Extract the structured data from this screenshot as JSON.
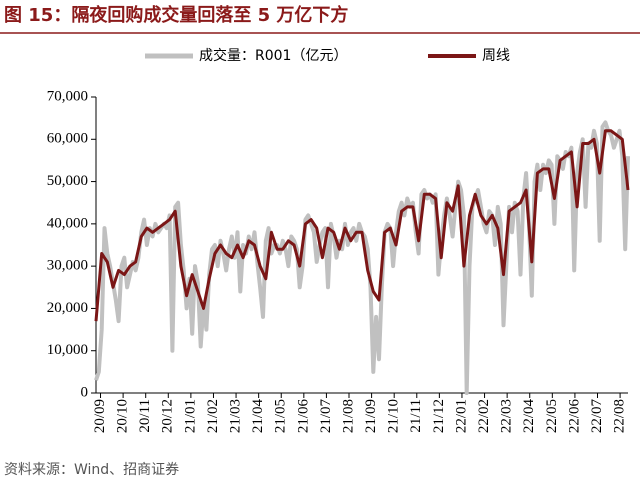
{
  "chart_data": {
    "type": "line",
    "title": "图 15：隔夜回购成交量回落至 5 万亿下方",
    "source": "资料来源：Wind、招商证券",
    "xlim": [
      -0.2,
      23.35
    ],
    "xticks": [
      {
        "value": 0,
        "label": "20/09"
      },
      {
        "value": 1,
        "label": "20/10"
      },
      {
        "value": 2,
        "label": "20/11"
      },
      {
        "value": 3,
        "label": "20/12"
      },
      {
        "value": 4,
        "label": "21/01"
      },
      {
        "value": 5,
        "label": "21/02"
      },
      {
        "value": 6,
        "label": "21/03"
      },
      {
        "value": 7,
        "label": "21/04"
      },
      {
        "value": 8,
        "label": "21/05"
      },
      {
        "value": 9,
        "label": "21/06"
      },
      {
        "value": 10,
        "label": "21/07"
      },
      {
        "value": 11,
        "label": "21/08"
      },
      {
        "value": 12,
        "label": "21/09"
      },
      {
        "value": 13,
        "label": "21/10"
      },
      {
        "value": 14,
        "label": "21/11"
      },
      {
        "value": 15,
        "label": "21/12"
      },
      {
        "value": 16,
        "label": "22/01"
      },
      {
        "value": 17,
        "label": "22/02"
      },
      {
        "value": 18,
        "label": "22/03"
      },
      {
        "value": 19,
        "label": "22/04"
      },
      {
        "value": 20,
        "label": "22/05"
      },
      {
        "value": 21,
        "label": "22/06"
      },
      {
        "value": 22,
        "label": "22/07"
      },
      {
        "value": 23,
        "label": "22/08"
      }
    ],
    "ylim": [
      0,
      70000
    ],
    "yticks": [
      0,
      {
        "value": 10000,
        "label": "10,000"
      },
      {
        "value": 20000,
        "label": "20,000"
      },
      {
        "value": 30000,
        "label": "30,000"
      },
      {
        "value": 40000,
        "label": "40,000"
      },
      {
        "value": 50000,
        "label": "50,000"
      },
      {
        "value": 60000,
        "label": "60,000"
      },
      {
        "value": 70000,
        "label": "70,000"
      }
    ],
    "series": [
      {
        "name": "成交量：R001（亿元）",
        "color": "#c0c0c0",
        "width": 4,
        "values": [
          3000,
          5000,
          15000,
          39000,
          33000,
          30000,
          26000,
          22000,
          17000,
          30000,
          32000,
          25000,
          28000,
          31000,
          29000,
          32000,
          38000,
          41000,
          35000,
          39000,
          37000,
          40000,
          38000,
          39000,
          40000,
          39000,
          42000,
          10000,
          44000,
          45000,
          35000,
          29000,
          20000,
          27000,
          14000,
          30000,
          26000,
          11000,
          21000,
          15000,
          28000,
          34000,
          35000,
          30000,
          36000,
          33000,
          29000,
          34000,
          37000,
          32000,
          38000,
          24000,
          35000,
          33000,
          37000,
          34000,
          38000,
          31000,
          25000,
          18000,
          36000,
          39000,
          33000,
          35000,
          35000,
          33000,
          36000,
          34000,
          30000,
          37000,
          36000,
          34000,
          25000,
          30000,
          41000,
          42000,
          40000,
          38000,
          31000,
          35000,
          38000,
          39000,
          25000,
          40000,
          37000,
          32000,
          36000,
          34000,
          40000,
          35000,
          38000,
          39000,
          36000,
          40000,
          38000,
          37000,
          34000,
          25000,
          5000,
          18000,
          8000,
          25000,
          38000,
          40000,
          39000,
          30000,
          38000,
          43000,
          45000,
          42000,
          46000,
          44000,
          45000,
          38000,
          33000,
          47000,
          48000,
          46000,
          47000,
          45000,
          47000,
          28000,
          36000,
          42000,
          46000,
          42000,
          37000,
          44000,
          50000,
          48000,
          42000,
          0,
          30000,
          44000,
          46000,
          48000,
          44000,
          40000,
          38000,
          43000,
          42000,
          35000,
          44000,
          40000,
          16000,
          30000,
          44000,
          38000,
          45000,
          43000,
          28000,
          46000,
          52000,
          40000,
          23000,
          50000,
          54000,
          48000,
          54000,
          52000,
          55000,
          54000,
          40000,
          56000,
          55000,
          53000,
          57000,
          56000,
          58000,
          29000,
          52000,
          57000,
          60000,
          44000,
          59000,
          58000,
          62000,
          59000,
          36000,
          63000,
          64000,
          62000,
          61000,
          58000,
          60000,
          62000,
          56000,
          34000,
          56000
        ]
      },
      {
        "name": "周线",
        "color": "#7b1616",
        "width": 3,
        "values": [
          17000,
          33000,
          31000,
          25000,
          29000,
          28000,
          30000,
          31000,
          37000,
          39000,
          38000,
          39000,
          40000,
          41000,
          43000,
          30000,
          23000,
          28000,
          24000,
          20000,
          27000,
          33000,
          35000,
          33000,
          32000,
          35000,
          32000,
          36000,
          35000,
          30000,
          27000,
          38000,
          34000,
          34000,
          36000,
          35000,
          30000,
          40000,
          41000,
          39000,
          32000,
          39000,
          38000,
          34000,
          39000,
          36000,
          38000,
          38000,
          29000,
          24000,
          22000,
          38000,
          39000,
          35000,
          43000,
          44000,
          44000,
          36000,
          47000,
          47000,
          46000,
          32000,
          45000,
          43000,
          49000,
          30000,
          42000,
          47000,
          42000,
          40000,
          42000,
          39000,
          28000,
          43000,
          44000,
          45000,
          48000,
          31000,
          52000,
          53000,
          53000,
          46000,
          55000,
          56000,
          57000,
          44000,
          59000,
          59000,
          60000,
          52000,
          62000,
          62000,
          61000,
          60000,
          48000
        ]
      }
    ]
  }
}
